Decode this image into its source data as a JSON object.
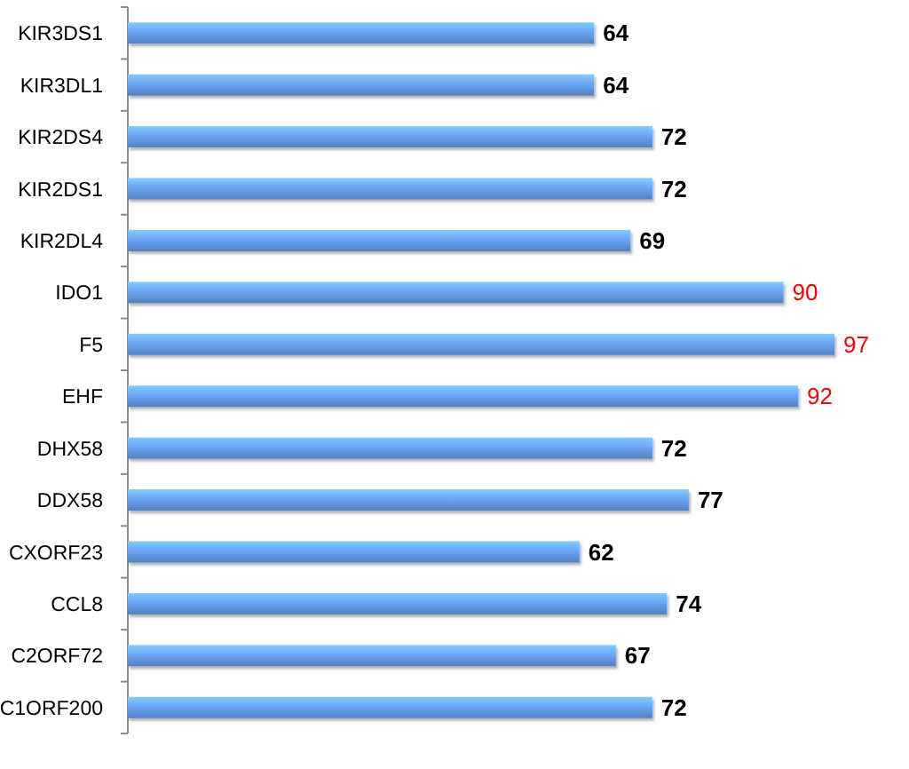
{
  "chart_data": {
    "type": "bar",
    "orientation": "horizontal",
    "categories": [
      "KIR3DS1",
      "KIR3DL1",
      "KIR2DS4",
      "KIR2DS1",
      "KIR2DL4",
      "IDO1",
      "F5",
      "EHF",
      "DHX58",
      "DDX58",
      "CXORF23",
      "CCL8",
      "C2ORF72",
      "C1ORF200"
    ],
    "values": [
      64,
      64,
      72,
      72,
      69,
      90,
      97,
      92,
      72,
      77,
      62,
      74,
      67,
      72
    ],
    "value_labels": [
      "64",
      "64",
      "72",
      "72",
      "69",
      null,
      null,
      null,
      "72",
      "77",
      "62",
      "74",
      "67",
      "72"
    ],
    "annotations": [
      {
        "text": "90",
        "x": 90,
        "y": "IDO1"
      },
      {
        "text": "97",
        "x": 97,
        "y": "F5"
      },
      {
        "text": "92",
        "x": 92,
        "y": "EHF"
      }
    ],
    "color": "#5f94dd",
    "tick_labels": "y"
  }
}
